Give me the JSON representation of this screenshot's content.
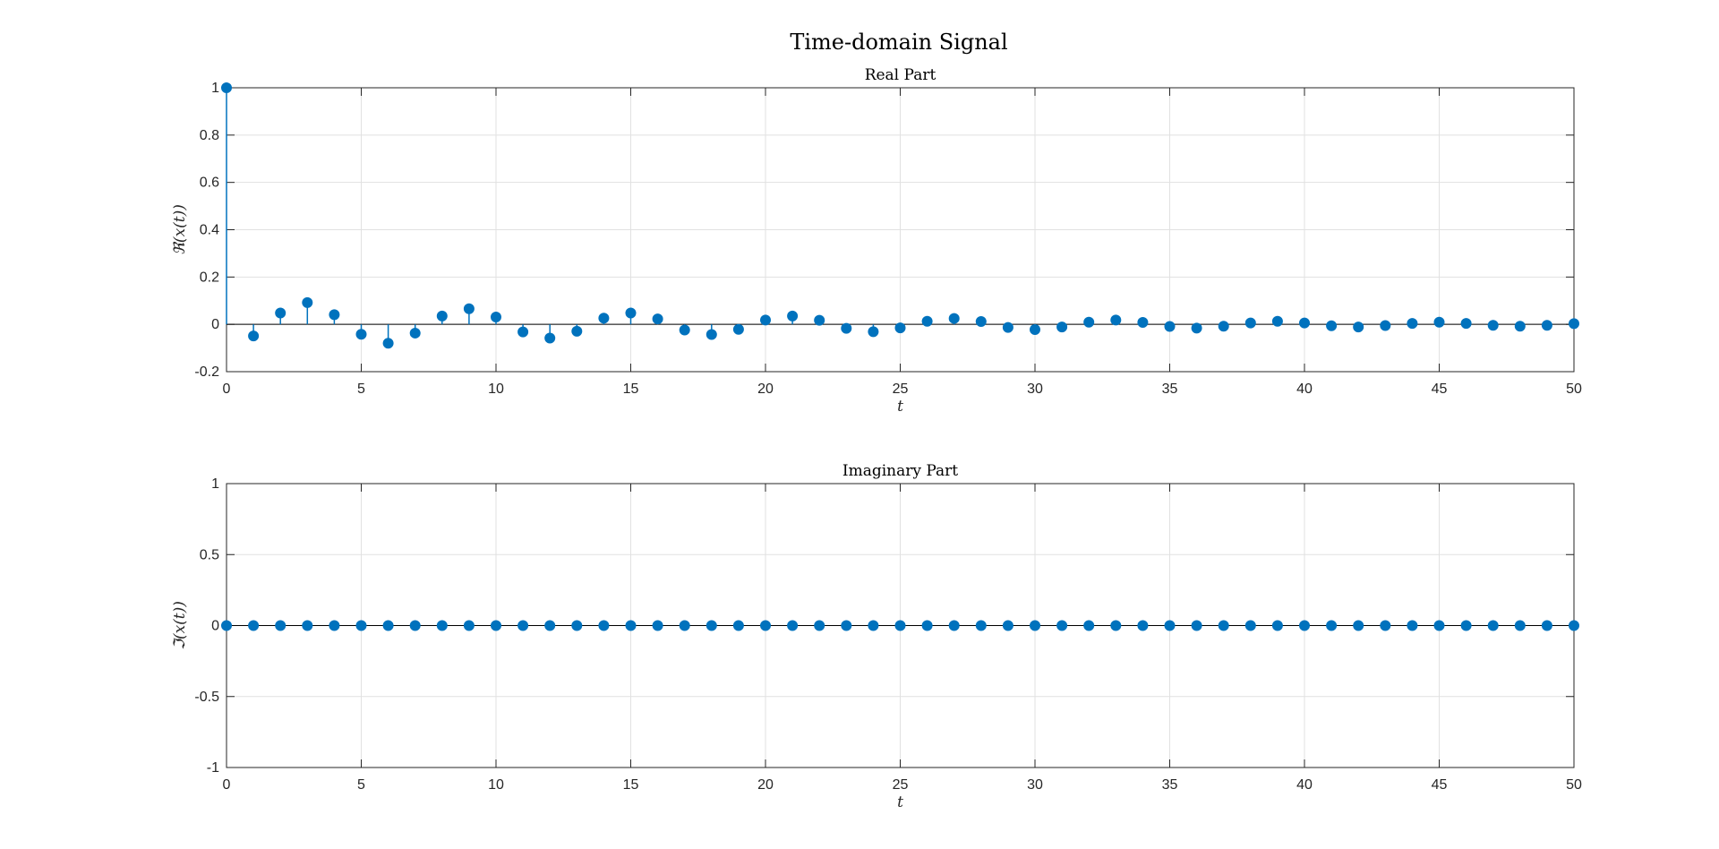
{
  "figure": {
    "title": "Time-domain Signal"
  },
  "chart_data": [
    {
      "type": "stem",
      "title": "Real Part",
      "xlabel": "t",
      "ylabel": "ℜ(x(t))",
      "xlim": [
        0,
        50
      ],
      "ylim": [
        -0.2,
        1
      ],
      "xticks": [
        0,
        5,
        10,
        15,
        20,
        25,
        30,
        35,
        40,
        45,
        50
      ],
      "yticks": [
        -0.2,
        0,
        0.2,
        0.4,
        0.6,
        0.8,
        1
      ],
      "ytick_labels": [
        "-0.2",
        "0",
        "0.2",
        "0.4",
        "0.6",
        "0.8",
        "1"
      ],
      "grid": true,
      "color": "#0072BD",
      "x": [
        0,
        1,
        2,
        3,
        4,
        5,
        6,
        7,
        8,
        9,
        10,
        11,
        12,
        13,
        14,
        15,
        16,
        17,
        18,
        19,
        20,
        21,
        22,
        23,
        24,
        25,
        26,
        27,
        28,
        29,
        30,
        31,
        32,
        33,
        34,
        35,
        36,
        37,
        38,
        39,
        40,
        41,
        42,
        43,
        44,
        45,
        46,
        47,
        48,
        49,
        50
      ],
      "y": [
        1.0,
        -0.049,
        0.048,
        0.092,
        0.041,
        -0.042,
        -0.08,
        -0.037,
        0.035,
        0.066,
        0.031,
        -0.032,
        -0.058,
        -0.029,
        0.026,
        0.048,
        0.023,
        -0.024,
        -0.043,
        -0.021,
        0.018,
        0.035,
        0.017,
        -0.017,
        -0.031,
        -0.015,
        0.013,
        0.025,
        0.012,
        -0.013,
        -0.022,
        -0.011,
        0.009,
        0.018,
        0.008,
        -0.009,
        -0.016,
        -0.008,
        0.006,
        0.013,
        0.006,
        -0.006,
        -0.011,
        -0.005,
        0.004,
        0.009,
        0.004,
        -0.004,
        -0.008,
        -0.004,
        0.003
      ]
    },
    {
      "type": "stem",
      "title": "Imaginary Part",
      "xlabel": "t",
      "ylabel": "ℑ(x(t))",
      "xlim": [
        0,
        50
      ],
      "ylim": [
        -1,
        1
      ],
      "xticks": [
        0,
        5,
        10,
        15,
        20,
        25,
        30,
        35,
        40,
        45,
        50
      ],
      "yticks": [
        -1,
        -0.5,
        0,
        0.5,
        1
      ],
      "ytick_labels": [
        "-1",
        "-0.5",
        "0",
        "0.5",
        "1"
      ],
      "grid": true,
      "color": "#0072BD",
      "x": [
        0,
        1,
        2,
        3,
        4,
        5,
        6,
        7,
        8,
        9,
        10,
        11,
        12,
        13,
        14,
        15,
        16,
        17,
        18,
        19,
        20,
        21,
        22,
        23,
        24,
        25,
        26,
        27,
        28,
        29,
        30,
        31,
        32,
        33,
        34,
        35,
        36,
        37,
        38,
        39,
        40,
        41,
        42,
        43,
        44,
        45,
        46,
        47,
        48,
        49,
        50
      ],
      "y": [
        0,
        0,
        0,
        0,
        0,
        0,
        0,
        0,
        0,
        0,
        0,
        0,
        0,
        0,
        0,
        0,
        0,
        0,
        0,
        0,
        0,
        0,
        0,
        0,
        0,
        0,
        0,
        0,
        0,
        0,
        0,
        0,
        0,
        0,
        0,
        0,
        0,
        0,
        0,
        0,
        0,
        0,
        0,
        0,
        0,
        0,
        0,
        0,
        0,
        0,
        0
      ]
    }
  ]
}
